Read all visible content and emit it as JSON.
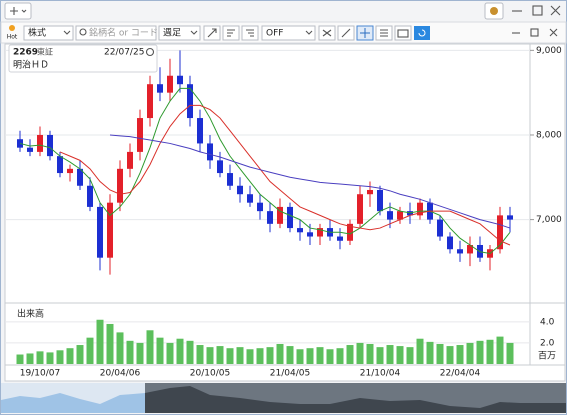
{
  "ui": {
    "market_select": "株式",
    "search_placeholder": "銘柄名 or コード",
    "period_select": "週足",
    "off_select": "OFF",
    "hot": "Hot",
    "code": "2269",
    "exchange": "東証",
    "date": "22/07/25",
    "name": "明治ＨＤ"
  },
  "chart_data": {
    "type": "candlestick",
    "categories": [
      null,
      null,
      "19/10/07",
      null,
      null,
      null,
      null,
      null,
      null,
      null,
      "20/04/06",
      null,
      null,
      null,
      null,
      null,
      null,
      null,
      null,
      "20/10/05",
      null,
      null,
      null,
      null,
      null,
      null,
      null,
      "21/04/05",
      null,
      null,
      null,
      null,
      null,
      null,
      null,
      null,
      "21/10/04",
      null,
      null,
      null,
      null,
      null,
      null,
      null,
      "22/04/04",
      null,
      null,
      null,
      null,
      null
    ],
    "open": [
      7950,
      7850,
      7800,
      8000,
      7750,
      7550,
      7600,
      7400,
      7150,
      6550,
      7200,
      7600,
      7800,
      8200,
      8600,
      8500,
      8700,
      8600,
      8200,
      7900,
      7700,
      7550,
      7400,
      7300,
      7200,
      7100,
      6950,
      7150,
      6900,
      6850,
      6800,
      6900,
      6800,
      6750,
      6950,
      7300,
      7350,
      7100,
      7000,
      7100,
      7050,
      7200,
      7000,
      6800,
      6650,
      6600,
      6700,
      6550,
      6650,
      7050
    ],
    "high": [
      8050,
      7950,
      8100,
      8050,
      7800,
      7650,
      7700,
      7500,
      7200,
      7300,
      7700,
      7900,
      8300,
      8700,
      8800,
      8900,
      9000,
      8700,
      8300,
      8000,
      7800,
      7650,
      7500,
      7400,
      7300,
      7200,
      7250,
      7200,
      7000,
      6950,
      6950,
      7000,
      6900,
      7000,
      7400,
      7450,
      7400,
      7200,
      7150,
      7200,
      7250,
      7250,
      7050,
      6850,
      6750,
      6800,
      6800,
      6700,
      7150,
      7150
    ],
    "low": [
      7800,
      7750,
      7750,
      7700,
      7500,
      7450,
      7350,
      7100,
      6400,
      6350,
      7100,
      7500,
      7700,
      8100,
      8400,
      8400,
      8500,
      8100,
      7800,
      7600,
      7500,
      7350,
      7200,
      7150,
      7000,
      6850,
      6900,
      6850,
      6750,
      6700,
      6700,
      6750,
      6650,
      6700,
      6900,
      7150,
      7050,
      6900,
      6950,
      6950,
      7000,
      6950,
      6750,
      6600,
      6500,
      6450,
      6500,
      6400,
      6600,
      6850
    ],
    "close": [
      7850,
      7800,
      8000,
      7750,
      7550,
      7600,
      7400,
      7150,
      6550,
      7200,
      7600,
      7800,
      8200,
      8600,
      8500,
      8700,
      8600,
      8200,
      7900,
      7700,
      7550,
      7400,
      7300,
      7200,
      7100,
      6950,
      7150,
      6900,
      6850,
      6800,
      6900,
      6800,
      6750,
      6950,
      7300,
      7350,
      7100,
      7000,
      7100,
      7050,
      7200,
      7000,
      6800,
      6650,
      6600,
      6700,
      6550,
      6650,
      7050,
      7000
    ],
    "up_color": "#e3202a",
    "down_color": "#1c2fd2",
    "ylim": [
      6050,
      9075
    ],
    "yticks": [
      {
        "value": 7000,
        "label": "7,000"
      },
      {
        "value": 8000,
        "label": "8,000"
      },
      {
        "value": 9000,
        "label": "9,000"
      }
    ],
    "grid": true,
    "series": [
      {
        "color": "#2e9a2e",
        "values": [
          7900,
          7870,
          7880,
          7850,
          7750,
          7680,
          7600,
          7480,
          7200,
          7050,
          7150,
          7300,
          7550,
          7850,
          8200,
          8400,
          8550,
          8550,
          8400,
          8200,
          7950,
          7750,
          7600,
          7450,
          7300,
          7200,
          7100,
          7050,
          7000,
          6900,
          6880,
          6850,
          6850,
          6830,
          6900,
          7000,
          7100,
          7150,
          7100,
          7080,
          7100,
          7100,
          7050,
          6900,
          6780,
          6700,
          6620,
          6600,
          6700,
          6850
        ]
      },
      {
        "color": "#d9302a",
        "values": [
          null,
          null,
          null,
          null,
          7800,
          7750,
          7700,
          7600,
          7450,
          7350,
          7300,
          7320,
          7450,
          7650,
          7900,
          8100,
          8250,
          8350,
          8350,
          8300,
          8200,
          8050,
          7900,
          7750,
          7600,
          7450,
          7350,
          7250,
          7150,
          7100,
          7050,
          7000,
          6950,
          6920,
          6900,
          6880,
          6900,
          6950,
          7000,
          7050,
          7080,
          7100,
          7100,
          7100,
          7050,
          7000,
          6950,
          6850,
          6750,
          6700
        ]
      },
      {
        "color": "#4a3fc0",
        "values": [
          null,
          null,
          null,
          null,
          null,
          null,
          null,
          null,
          null,
          8000,
          7990,
          7980,
          7960,
          7940,
          7920,
          7900,
          7870,
          7840,
          7800,
          7770,
          7740,
          7700,
          7660,
          7620,
          7590,
          7560,
          7530,
          7500,
          7480,
          7460,
          7440,
          7430,
          7420,
          7410,
          7400,
          7390,
          7370,
          7340,
          7300,
          7270,
          7240,
          7200,
          7160,
          7120,
          7080,
          7040,
          7000,
          6970,
          6940,
          6900
        ]
      }
    ],
    "volume": {
      "label": "出来高",
      "unit": "百万",
      "color": "#5cbf5c",
      "values": [
        0.9,
        1.0,
        1.2,
        1.1,
        1.3,
        1.5,
        1.8,
        2.5,
        4.2,
        3.8,
        3.0,
        2.2,
        2.0,
        3.2,
        2.5,
        2.0,
        2.4,
        2.2,
        1.8,
        1.6,
        1.7,
        1.5,
        1.6,
        1.4,
        1.5,
        1.6,
        1.9,
        1.7,
        1.4,
        1.5,
        1.6,
        1.4,
        1.5,
        1.8,
        2.0,
        1.9,
        1.6,
        1.8,
        1.7,
        1.6,
        2.4,
        2.1,
        1.9,
        1.7,
        1.8,
        2.0,
        2.2,
        2.3,
        2.6,
        2.0
      ],
      "ylim": [
        0,
        5.6
      ],
      "yticks": [
        {
          "value": 2,
          "label": "2.0"
        },
        {
          "value": 4,
          "label": "4.0"
        }
      ]
    }
  }
}
